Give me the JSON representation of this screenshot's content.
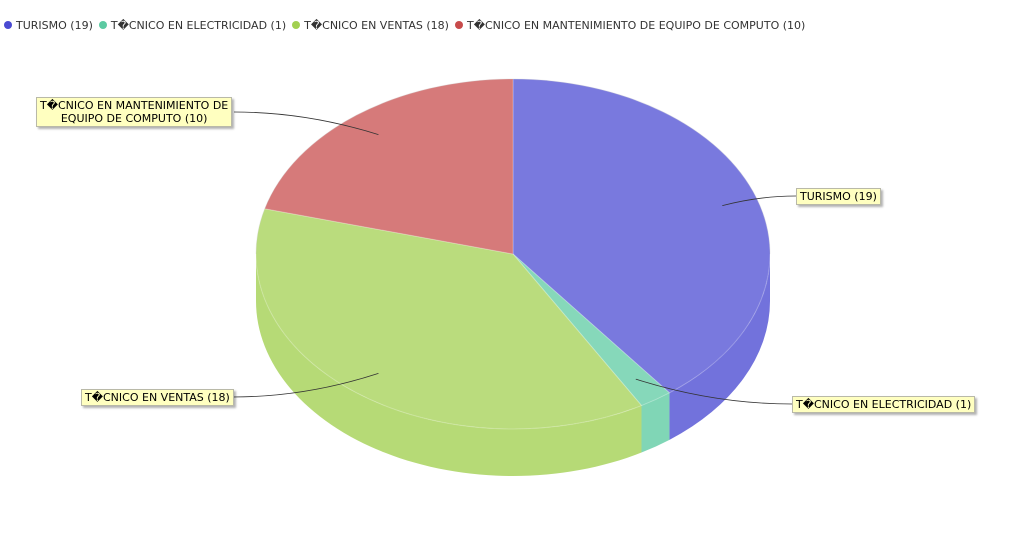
{
  "chart_data": {
    "type": "pie",
    "categories": [
      "TURISMO",
      "T�CNICO EN ELECTRICIDAD",
      "T�CNICO EN VENTAS",
      "T�CNICO EN MANTENIMIENTO DE EQUIPO DE COMPUTO"
    ],
    "values": [
      19,
      1,
      18,
      10
    ],
    "colors": [
      "#4a4ad2",
      "#5ccaa2",
      "#a2d050",
      "#c84b4b"
    ],
    "legend": [
      {
        "label": "TURISMO (19)",
        "color": "#4a4ad2"
      },
      {
        "label": "T�CNICO EN ELECTRICIDAD (1)",
        "color": "#5ccaa2"
      },
      {
        "label": "T�CNICO EN VENTAS (18)",
        "color": "#a2d050"
      },
      {
        "label": "T�CNICO EN MANTENIMIENTO DE EQUIPO DE COMPUTO (10)",
        "color": "#c84b4b"
      }
    ],
    "slice_labels": [
      {
        "line1": "TURISMO (19)",
        "line2": ""
      },
      {
        "line1": "T�CNICO EN ELECTRICIDAD (1)",
        "line2": ""
      },
      {
        "line1": "T�CNICO EN VENTAS (18)",
        "line2": ""
      },
      {
        "line1": "T�CNICO EN MANTENIMIENTO DE",
        "line2": "EQUIPO DE COMPUTO (10)"
      }
    ],
    "legend_position": "top-left",
    "style": "3d-transparent"
  }
}
